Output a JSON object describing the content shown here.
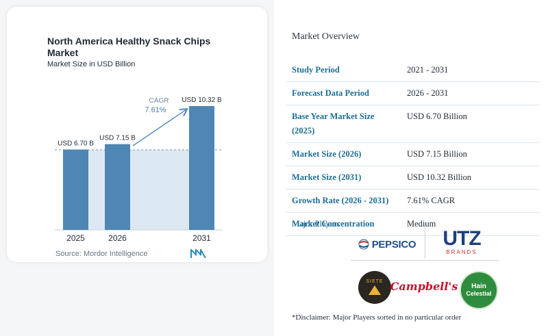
{
  "chart_data": {
    "type": "bar",
    "title": "North America Healthy Snack Chips Market",
    "subtitle": "Market Size in USD Billion",
    "categories": [
      "2025",
      "2026",
      "2031"
    ],
    "values": [
      6.7,
      7.15,
      10.32
    ],
    "data_labels": [
      "USD 6.70 B",
      "USD 7.15 B",
      "USD 10.32 B"
    ],
    "cagr_label": "CAGR",
    "cagr_value": "7.61%",
    "bar_color": "#4f86b4",
    "source": "Source: Mordor Intelligence"
  },
  "overview": {
    "title": "Market Overview",
    "rows": [
      {
        "key": "Study Period",
        "value": "2021 - 2031"
      },
      {
        "key": "Forecast Data Period",
        "value": "2026 - 2031"
      },
      {
        "key": "Base Year Market Size (2025)",
        "value": "USD 6.70 Billion"
      },
      {
        "key": "Market Size (2026)",
        "value": "USD 7.15 Billion"
      },
      {
        "key": "Market Size (2031)",
        "value": "USD 10.32 Billion"
      },
      {
        "key": "Growth Rate (2026 - 2031)",
        "value": "7.61% CAGR"
      },
      {
        "key": "Market Concentration",
        "value": "Medium"
      }
    ]
  },
  "players": {
    "title": "Major Players",
    "logos": {
      "pepsico": "PEPSICO",
      "utz": "UTZ",
      "utz_sub": "BRANDS",
      "siete": "SIETE",
      "campbells": "Campbell's",
      "hain_1": "Hain",
      "hain_2": "Celestial"
    },
    "disclaimer": "*Disclaimer: Major Players sorted in no particular order"
  }
}
